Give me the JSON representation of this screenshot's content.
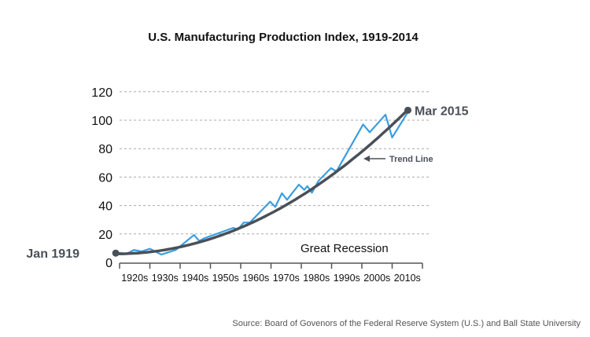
{
  "chart_data": {
    "type": "line",
    "title": "U.S. Manufacturing Production Index, 1919-2014",
    "xlabel": "",
    "ylabel": "",
    "ylim": [
      0,
      120
    ],
    "xlim": [
      1920,
      2020
    ],
    "grid": true,
    "yticks": [
      "0",
      "20",
      "40",
      "60",
      "80",
      "100",
      "120"
    ],
    "ytick_values": [
      0,
      20,
      40,
      60,
      80,
      100,
      120
    ],
    "xtick_labels": [
      "1920s",
      "1930s",
      "1940s",
      "1950s",
      "1960s",
      "1970s",
      "1980s",
      "1990s",
      "2000s",
      "2010s"
    ],
    "xtick_decades": [
      1920,
      1930,
      1940,
      1950,
      1960,
      1970,
      1980,
      1990,
      2000,
      2010
    ],
    "series": [
      {
        "name": "Manufacturing Production Index",
        "color": "#3a9ee0",
        "x": [
          1919,
          1922.5,
          1924.7,
          1927.3,
          1930,
          1933.8,
          1938.5,
          1944.6,
          1946.3,
          1948,
          1957.6,
          1959,
          1961,
          1963,
          1969.7,
          1971.4,
          1973.6,
          1975.3,
          1979.2,
          1981,
          1982,
          1983.5,
          1985.7,
          1989.8,
          1991.6,
          2000.4,
          2002.6,
          2007.8,
          2010,
          2015
        ],
        "y": [
          6.8,
          6.2,
          8.7,
          7.7,
          9.6,
          5.5,
          8.7,
          19.3,
          15,
          17,
          24.3,
          23,
          28,
          28,
          42.7,
          39,
          48.6,
          44,
          54.7,
          51,
          53.6,
          49,
          57.4,
          66.3,
          64,
          97,
          91.5,
          103.9,
          87.8,
          105
        ]
      },
      {
        "name": "Trend Line",
        "color": "#4a5058",
        "x": [
          1919,
          1929,
          1939,
          1949,
          1959,
          1969,
          1979,
          1989,
          1999,
          2009,
          2015
        ],
        "y": [
          6,
          7.1,
          10.4,
          15.9,
          23.5,
          33.4,
          45.5,
          59.7,
          76.1,
          94.8,
          107
        ]
      }
    ],
    "annotations": {
      "start_label": "Jan 1919",
      "start_value": 6.5,
      "start_year": 1919,
      "end_label": "Mar 2015",
      "end_value": 107,
      "end_year": 2015.2,
      "trend_label": "Trend Line",
      "recession_label": "Great Recession"
    },
    "source": "Source: Board of Govenors of the Federal Reserve System (U.S.) and Ball State University"
  }
}
